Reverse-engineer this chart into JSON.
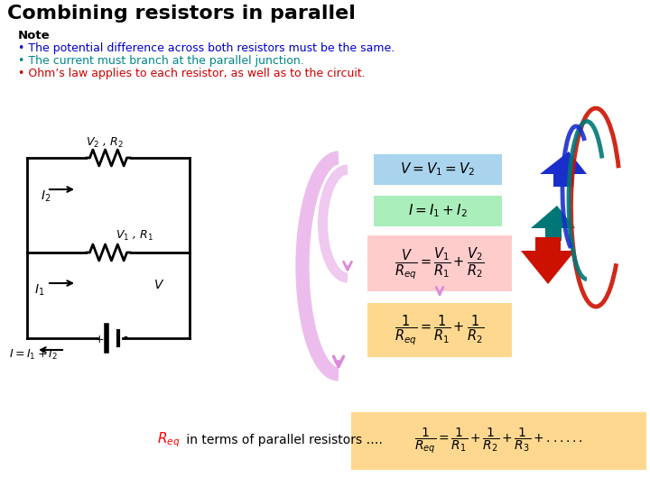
{
  "title": "Combining resistors in parallel",
  "title_fontsize": 16,
  "bg_color": "#ffffff",
  "note_label": "Note",
  "bullets": [
    {
      "text": "The potential difference across both resistors must be the same.",
      "color": "#0000cc"
    },
    {
      "text": "The current must branch at the parallel junction.",
      "color": "#008888"
    },
    {
      "text": "Ohm’s law applies to each resistor, as well as to the circuit.",
      "color": "#cc0000"
    }
  ],
  "eq1_box_color": "#aad4ee",
  "eq2_box_color": "#aaeebb",
  "eq3_box_color": "#ffcccc",
  "eq4_box_color": "#ffd890",
  "eq5_box_color": "#ffd890",
  "pink_arrow_color": "#dd88dd",
  "blue_arrow_color": "#1a2ecc",
  "teal_arrow_color": "#007777",
  "red_arrow_color": "#cc1100"
}
